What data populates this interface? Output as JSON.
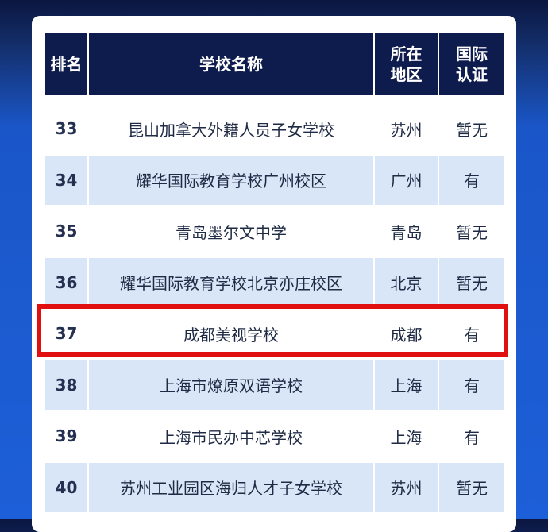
{
  "table": {
    "header": [
      "排名",
      "学校名称",
      "所在地区",
      "国际认证"
    ],
    "rows": [
      [
        "33",
        "昆山加拿大外籍人员子女学校",
        "苏州",
        "暂无"
      ],
      [
        "34",
        "耀华国际教育学校广州校区",
        "广州",
        "有"
      ],
      [
        "35",
        "青岛墨尔文中学",
        "青岛",
        "暂无"
      ],
      [
        "36",
        "耀华国际教育学校北京亦庄校区",
        "北京",
        "暂无"
      ],
      [
        "37",
        "成都美视学校",
        "成都",
        "有"
      ],
      [
        "38",
        "上海市燎原双语学校",
        "上海",
        "有"
      ],
      [
        "39",
        "上海市民办中芯学校",
        "上海",
        "有"
      ],
      [
        "40",
        "苏州工业园区海归人才子女学校",
        "苏州",
        "暂无"
      ]
    ],
    "highlight_row": 4
  }
}
